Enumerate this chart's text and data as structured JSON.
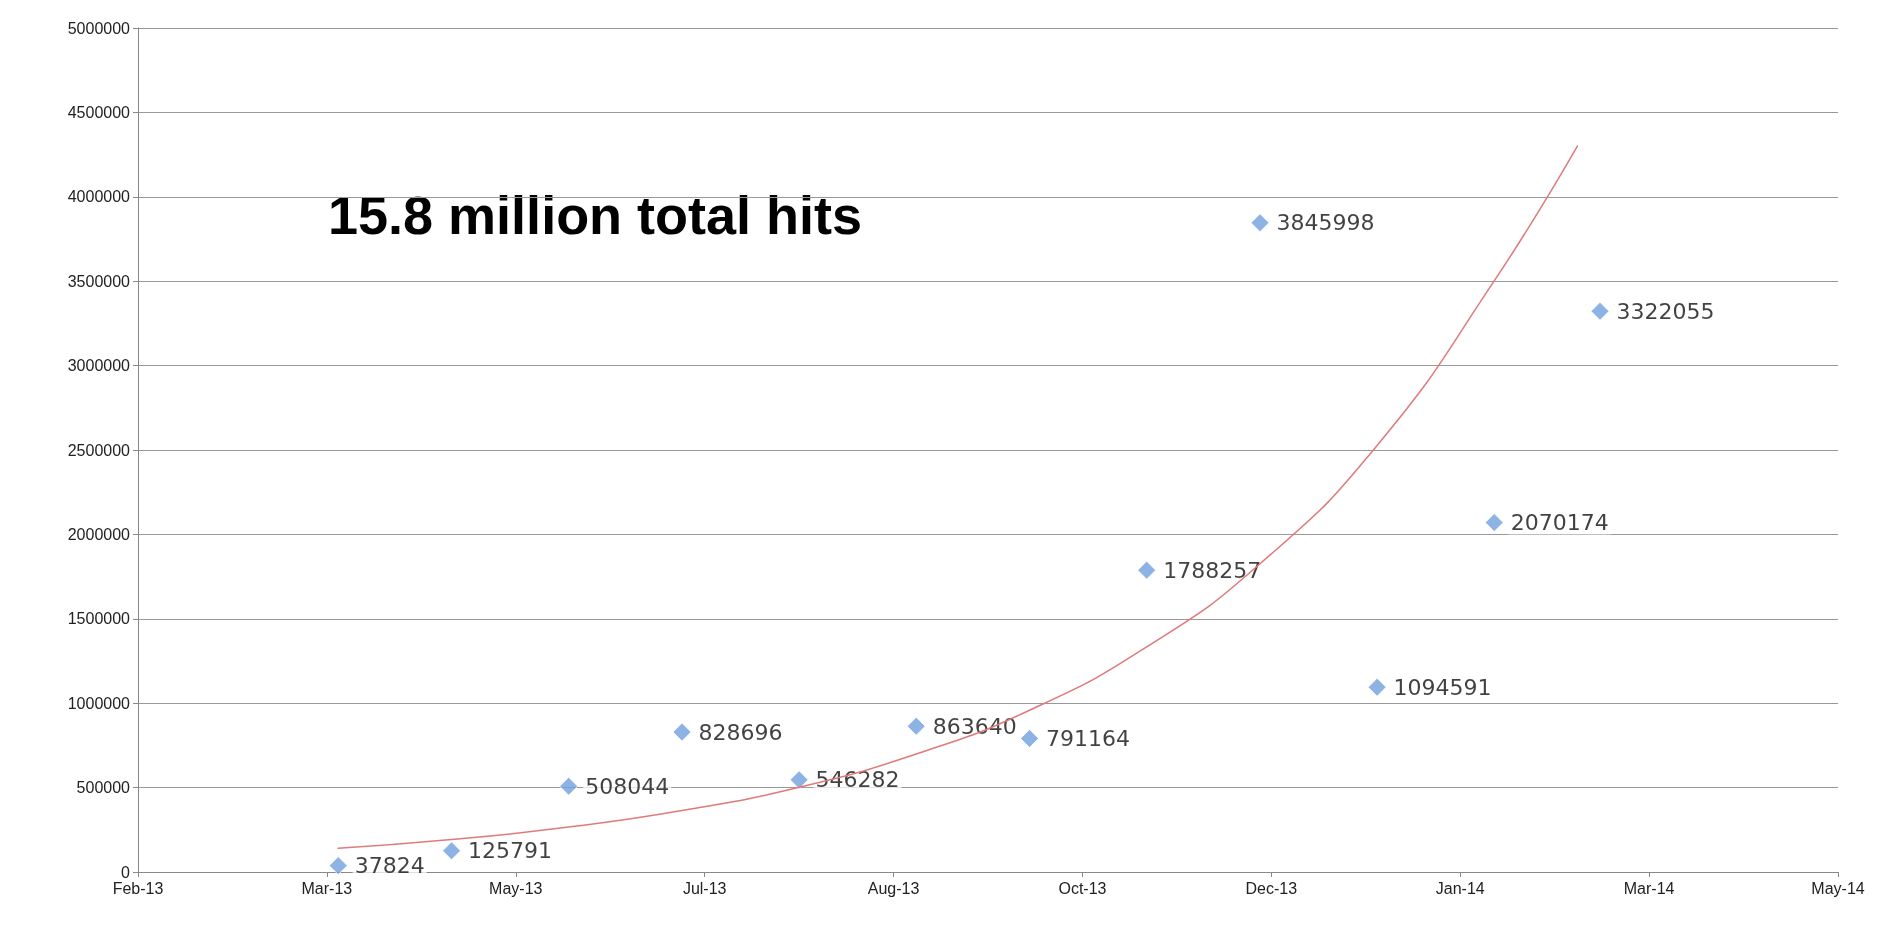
{
  "chart_data": {
    "type": "scatter",
    "annotations": [
      "15.8 million total hits"
    ],
    "xlim": [
      "2013-02-07",
      "2014-05-03"
    ],
    "xticks": [
      {
        "value": "2013-02-07",
        "label": "Feb-13"
      },
      {
        "value": "2013-03-29",
        "label": "Mar-13"
      },
      {
        "value": "2013-05-18",
        "label": "May-13"
      },
      {
        "value": "2013-07-07",
        "label": "Jul-13"
      },
      {
        "value": "2013-08-26",
        "label": "Aug-13"
      },
      {
        "value": "2013-10-15",
        "label": "Oct-13"
      },
      {
        "value": "2013-12-04",
        "label": "Dec-13"
      },
      {
        "value": "2014-01-23",
        "label": "Jan-14"
      },
      {
        "value": "2014-03-14",
        "label": "Mar-14"
      },
      {
        "value": "2014-05-03",
        "label": "May-14"
      }
    ],
    "ylim": [
      0,
      5000000
    ],
    "yticks": [
      0,
      500000,
      1000000,
      1500000,
      2000000,
      2500000,
      3000000,
      3500000,
      4000000,
      4500000,
      5000000
    ],
    "grid": "y",
    "series": [
      {
        "color": "#6fa0dc",
        "marker": "diamond",
        "data_labels": true,
        "x": [
          "2013-04-01",
          "2013-05-01",
          "2013-06-01",
          "2013-07-01",
          "2013-08-01",
          "2013-09-01",
          "2013-10-01",
          "2013-11-01",
          "2013-12-01",
          "2014-01-01",
          "2014-02-01",
          "2014-03-01"
        ],
        "values": [
          37824,
          125791,
          508044,
          828696,
          546282,
          863640,
          791164,
          1788257,
          3845998,
          1094591,
          2070174,
          3322055
        ]
      },
      {
        "type": "line",
        "color": "#e07a7a",
        "marker": "none",
        "x": [
          "2013-04-01",
          "2013-05-01",
          "2013-06-01",
          "2013-07-01",
          "2013-08-01",
          "2013-09-01",
          "2013-10-01",
          "2013-11-01",
          "2013-12-01",
          "2014-01-01",
          "2014-02-01",
          "2014-02-23"
        ],
        "values": [
          140000,
          192000,
          266000,
          364000,
          502000,
          699000,
          958000,
          1333000,
          1826000,
          2527000,
          3502000,
          4300000
        ]
      }
    ]
  }
}
